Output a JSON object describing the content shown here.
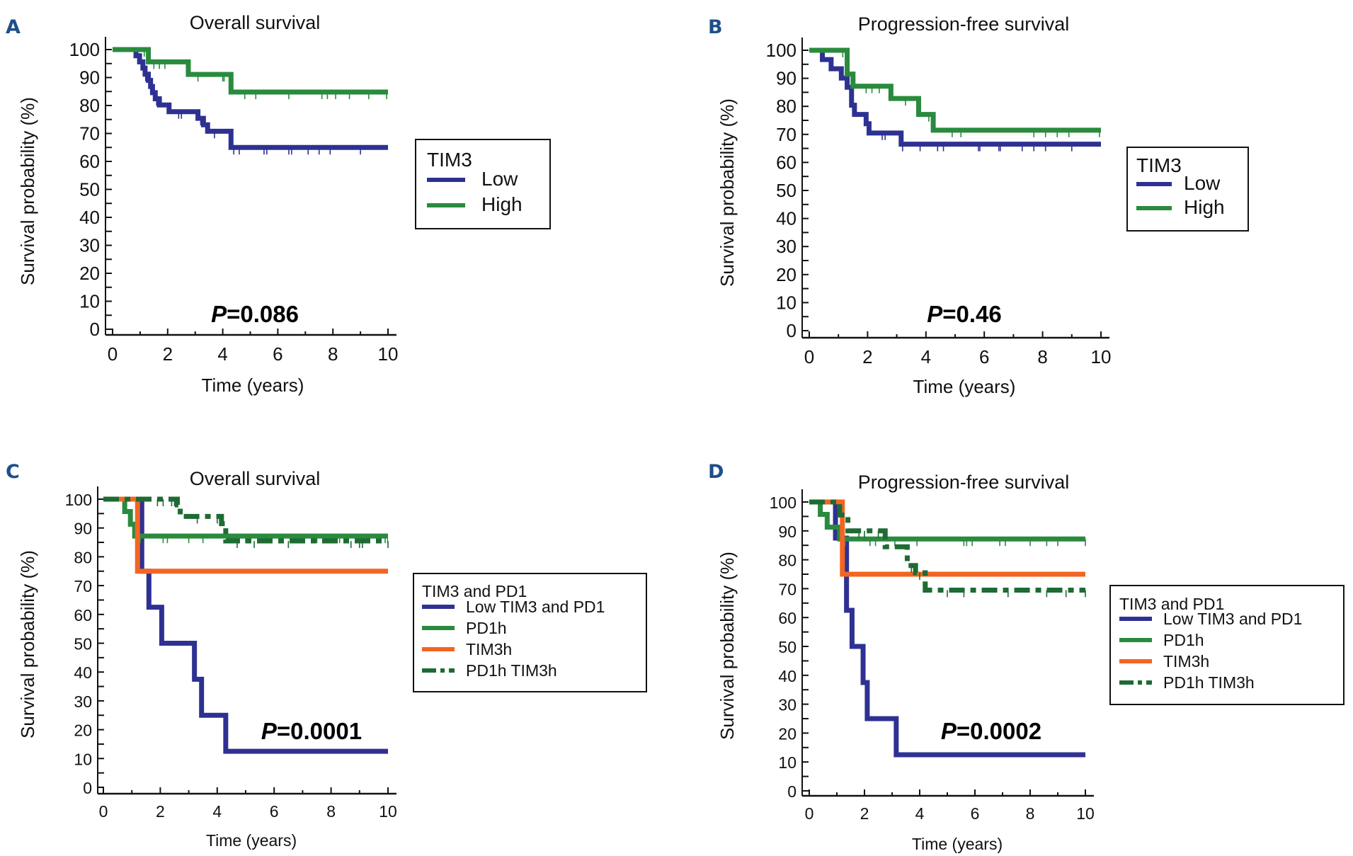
{
  "figure": {
    "panels": [
      "A",
      "B",
      "C",
      "D"
    ]
  },
  "chart_data": [
    {
      "panel_label": "A",
      "type": "line",
      "subtype": "kaplan-meier step",
      "title": "Overall  survival",
      "xlabel": "Time (years)",
      "ylabel": "Survival probability (%)",
      "xlim": [
        0,
        10
      ],
      "ylim": [
        0,
        100
      ],
      "xticks": [
        "0",
        "2",
        "4",
        "6",
        "8",
        "10"
      ],
      "yticks": [
        "0",
        "10",
        "20",
        "30",
        "40",
        "50",
        "60",
        "70",
        "80",
        "90",
        "100"
      ],
      "annotation": {
        "italic": "P",
        "text": "=0.086"
      },
      "legend": {
        "title": "TIM3",
        "placement": "right",
        "entries": [
          "Low",
          "High"
        ]
      },
      "series": [
        {
          "name": "Low",
          "color": "#2e3192",
          "style": "solid",
          "steps": [
            [
              0,
              100
            ],
            [
              0.85,
              97.8
            ],
            [
              0.98,
              95.6
            ],
            [
              1.1,
              93.4
            ],
            [
              1.18,
              91.2
            ],
            [
              1.3,
              89
            ],
            [
              1.38,
              86.8
            ],
            [
              1.45,
              84.6
            ],
            [
              1.55,
              82.4
            ],
            [
              1.7,
              80.2
            ],
            [
              2.05,
              77.8
            ],
            [
              3.1,
              75.4
            ],
            [
              3.3,
              73.1
            ],
            [
              3.45,
              70.8
            ],
            [
              4.3,
              65
            ]
          ],
          "censor_times": [
            1.2,
            1.6,
            2.4,
            2.5,
            3.2,
            3.7,
            4.4,
            4.6,
            5.5,
            5.6,
            6.4,
            6.5,
            7.1,
            7.5,
            7.9,
            9.0
          ]
        },
        {
          "name": "High",
          "color": "#2a8a3e",
          "style": "solid",
          "steps": [
            [
              0,
              100
            ],
            [
              1.3,
              95.6
            ],
            [
              2.75,
              91.1
            ],
            [
              4.3,
              84.8
            ]
          ],
          "censor_times": [
            1.15,
            1.5,
            1.7,
            1.9,
            3.1,
            4.0,
            4.05,
            4.8,
            5.2,
            6.4,
            7.6,
            7.8,
            8.1,
            8.6,
            9.3,
            9.95
          ]
        }
      ]
    },
    {
      "panel_label": "B",
      "type": "line",
      "subtype": "kaplan-meier step",
      "title": "Progression-free  survival",
      "xlabel": "Time (years)",
      "ylabel": "Survival probability (%)",
      "xlim": [
        0,
        10
      ],
      "ylim": [
        0,
        100
      ],
      "xticks": [
        "0",
        "2",
        "4",
        "6",
        "8",
        "10"
      ],
      "yticks": [
        "0",
        "10",
        "20",
        "30",
        "40",
        "50",
        "60",
        "70",
        "80",
        "90",
        "100"
      ],
      "annotation": {
        "italic": "P",
        "text": "=0.46"
      },
      "legend": {
        "title": "TIM3",
        "placement": "right",
        "entries": [
          "Low",
          "High"
        ]
      },
      "series": [
        {
          "name": "Low",
          "color": "#2e3192",
          "style": "solid",
          "steps": [
            [
              0,
              100
            ],
            [
              0.45,
              96.7
            ],
            [
              0.75,
              93.4
            ],
            [
              1.1,
              90.1
            ],
            [
              1.3,
              86.8
            ],
            [
              1.45,
              80.4
            ],
            [
              1.55,
              77.1
            ],
            [
              1.95,
              73.8
            ],
            [
              2.05,
              70.5
            ],
            [
              3.15,
              66.5
            ]
          ],
          "censor_times": [
            2.5,
            2.6,
            3.2,
            3.8,
            4.4,
            4.6,
            5.8,
            5.85,
            6.5,
            6.55,
            7.3,
            7.7,
            8.1,
            9.0
          ]
        },
        {
          "name": "High",
          "color": "#2a8a3e",
          "style": "solid",
          "steps": [
            [
              0,
              100
            ],
            [
              1.3,
              91.5
            ],
            [
              1.5,
              87.2
            ],
            [
              2.8,
              82.8
            ],
            [
              3.75,
              77.1
            ],
            [
              4.25,
              71.5
            ]
          ],
          "censor_times": [
            1.15,
            1.95,
            2.15,
            2.4,
            3.3,
            4.1,
            4.9,
            5.2,
            7.7,
            8.1,
            8.5,
            8.9,
            9.95
          ]
        }
      ]
    },
    {
      "panel_label": "C",
      "type": "line",
      "subtype": "kaplan-meier step",
      "title": "Overall  survival",
      "xlabel": "Time (years)",
      "ylabel": "Survival probability (%)",
      "xlim": [
        0,
        10
      ],
      "ylim": [
        0,
        100
      ],
      "xticks": [
        "0",
        "2",
        "4",
        "6",
        "8",
        "10"
      ],
      "yticks": [
        "0",
        "10",
        "20",
        "30",
        "40",
        "50",
        "60",
        "70",
        "80",
        "90",
        "100"
      ],
      "annotation": {
        "italic": "P",
        "text": "=0.0001"
      },
      "legend": {
        "title": "TIM3 and PD1",
        "placement": "right",
        "entries": [
          "Low TIM3 and PD1",
          "PD1h",
          "TIM3h",
          "PD1h TIM3h"
        ]
      },
      "series": [
        {
          "name": "Low TIM3 and PD1",
          "color": "#2e3192",
          "style": "solid",
          "steps": [
            [
              0,
              100
            ],
            [
              1.35,
              75
            ],
            [
              1.6,
              62.5
            ],
            [
              2.05,
              50
            ],
            [
              3.2,
              37.5
            ],
            [
              3.45,
              25
            ],
            [
              4.3,
              12.5
            ]
          ],
          "censor_times": []
        },
        {
          "name": "PD1h",
          "color": "#2a8a3e",
          "style": "solid",
          "steps": [
            [
              0,
              100
            ],
            [
              0.75,
              95.7
            ],
            [
              0.95,
              91.3
            ],
            [
              1.1,
              87.2
            ]
          ],
          "censor_times": [
            1.3,
            2.1,
            2.25,
            3.0,
            3.5,
            4.45,
            5.0,
            5.7,
            6.6,
            7.5,
            7.9,
            8.3,
            9.0,
            9.9
          ]
        },
        {
          "name": "TIM3h",
          "color": "#f26522",
          "style": "solid",
          "steps": [
            [
              0,
              100
            ],
            [
              1.2,
              75
            ]
          ],
          "censor_times": []
        },
        {
          "name": "PD1h TIM3h",
          "color": "#1e6b33",
          "style": "dash-dot",
          "steps": [
            [
              0,
              100
            ],
            [
              2.6,
              98
            ],
            [
              2.7,
              94
            ],
            [
              4.15,
              91.5
            ],
            [
              4.3,
              85.5
            ]
          ],
          "censor_times": [
            1.9,
            2.1,
            2.4,
            2.5,
            3.3,
            4.0,
            4.1,
            4.7,
            5.3,
            6.5,
            8.7,
            9.0,
            9.1,
            10.0
          ]
        }
      ]
    },
    {
      "panel_label": "D",
      "type": "line",
      "subtype": "kaplan-meier step",
      "title": "Progression-free  survival",
      "xlabel": "Time (years)",
      "ylabel": "Survival probability (%)",
      "xlim": [
        0,
        10
      ],
      "ylim": [
        0,
        100
      ],
      "xticks": [
        "0",
        "2",
        "4",
        "6",
        "8",
        "10"
      ],
      "yticks": [
        "0",
        "10",
        "20",
        "30",
        "40",
        "50",
        "60",
        "70",
        "80",
        "90",
        "100"
      ],
      "annotation": {
        "italic": "P",
        "text": "=0.0002"
      },
      "legend": {
        "title": "TIM3 and PD1",
        "placement": "right",
        "entries": [
          "Low TIM3 and PD1",
          "PD1h",
          "TIM3h",
          "PD1h TIM3h"
        ]
      },
      "series": [
        {
          "name": "Low TIM3 and PD1",
          "color": "#2e3192",
          "style": "solid",
          "steps": [
            [
              0,
              100
            ],
            [
              0.95,
              87.5
            ],
            [
              1.35,
              62.5
            ],
            [
              1.55,
              50
            ],
            [
              1.95,
              37.5
            ],
            [
              2.1,
              25
            ],
            [
              3.15,
              12.5
            ]
          ],
          "censor_times": []
        },
        {
          "name": "PD1h",
          "color": "#2a8a3e",
          "style": "solid",
          "steps": [
            [
              0,
              100
            ],
            [
              0.4,
              95.7
            ],
            [
              0.65,
              91.3
            ],
            [
              1.1,
              87.2
            ]
          ],
          "censor_times": [
            1.3,
            2.2,
            2.4,
            3.1,
            3.9,
            5.6,
            5.7,
            5.9,
            6.9,
            7.1,
            8.0,
            8.6,
            9.0,
            10.0
          ]
        },
        {
          "name": "TIM3h",
          "color": "#f26522",
          "style": "solid",
          "steps": [
            [
              0,
              100
            ],
            [
              1.2,
              75
            ]
          ],
          "censor_times": []
        },
        {
          "name": "PD1h TIM3h",
          "color": "#1e6b33",
          "style": "dash-dot",
          "steps": [
            [
              0,
              100
            ],
            [
              1.1,
              95.5
            ],
            [
              1.4,
              90
            ],
            [
              2.75,
              84.5
            ],
            [
              3.55,
              78
            ],
            [
              3.85,
              75.5
            ],
            [
              4.2,
              69.5
            ]
          ],
          "censor_times": [
            1.8,
            2.0,
            2.5,
            3.7,
            4.0,
            5.0,
            5.6,
            7.2,
            8.6,
            9.3,
            10.0
          ]
        }
      ]
    }
  ]
}
